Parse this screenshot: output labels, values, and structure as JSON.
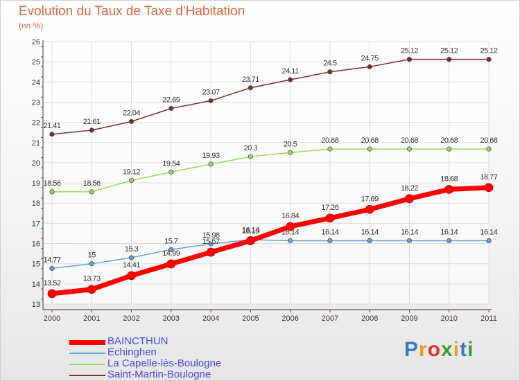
{
  "header": {
    "title": "Evolution du Taux de Taxe d'Habitation",
    "subtitle": "(en %)"
  },
  "brand": {
    "letters": [
      "P",
      "r",
      "o",
      "x",
      "i",
      "t",
      "i"
    ],
    "colors": [
      "#3a78c8",
      "#e3a21a",
      "#d33a2c",
      "#3a9a3a",
      "#e3a21a",
      "#3a78c8",
      "#3a9a3a"
    ]
  },
  "chart_data": {
    "type": "line",
    "title": "Evolution du Taux de Taxe d'Habitation",
    "subtitle": "(en %)",
    "x": [
      "2000",
      "2001",
      "2002",
      "2003",
      "2004",
      "2005",
      "2006",
      "2007",
      "2008",
      "2009",
      "2010",
      "2011"
    ],
    "ylim": [
      13,
      26
    ],
    "yticks": [
      13,
      14,
      15,
      16,
      17,
      18,
      19,
      20,
      21,
      22,
      23,
      24,
      25,
      26
    ],
    "grid": true,
    "legend": "bottom-left",
    "series": [
      {
        "name": "Saint-Martin-Boulogne",
        "color": "#7a2a2a",
        "emphasis": false,
        "values": [
          21.41,
          21.61,
          22.04,
          22.69,
          23.07,
          23.71,
          24.11,
          24.5,
          24.75,
          25.12,
          25.12,
          25.12
        ],
        "labels": [
          "21.41",
          "21.61",
          "22.04",
          "22.69",
          "23.07",
          "23.71",
          "24.11",
          "24.5",
          "24.75",
          "25.12",
          "25.12",
          "25.12"
        ]
      },
      {
        "name": "La Capelle-lès-Boulogne",
        "color": "#99d65a",
        "emphasis": false,
        "values": [
          18.56,
          18.56,
          19.12,
          19.54,
          19.93,
          20.3,
          20.5,
          20.68,
          20.68,
          20.68,
          20.68,
          20.68
        ],
        "labels": [
          "18.56",
          "18.56",
          "19.12",
          "19.54",
          "19.93",
          "20.3",
          "20.5",
          "20.68",
          "20.68",
          "20.68",
          "20.68",
          "20.68"
        ]
      },
      {
        "name": "Echinghen",
        "color": "#6b9fd1",
        "emphasis": false,
        "values": [
          14.77,
          15,
          15.3,
          15.7,
          15.98,
          16.19,
          16.14,
          16.14,
          16.14,
          16.14,
          16.14,
          16.14
        ],
        "labels": [
          "14.77",
          "15",
          "15.3",
          "15.7",
          "15.98",
          "16.19",
          "16.14",
          "16.14",
          "16.14",
          "16.14",
          "16.14",
          "16.14"
        ]
      },
      {
        "name": "BAINCTHUN",
        "color": "#ff0000",
        "emphasis": true,
        "values": [
          13.52,
          13.73,
          14.41,
          14.99,
          15.57,
          16.14,
          16.84,
          17.26,
          17.69,
          18.22,
          18.68,
          18.77
        ],
        "labels": [
          "13.52",
          "13.73",
          "14.41",
          "14.99",
          "15.57",
          "16.14",
          "16.84",
          "17.26",
          "17.69",
          "18.22",
          "18.68",
          "18.77"
        ]
      }
    ]
  }
}
